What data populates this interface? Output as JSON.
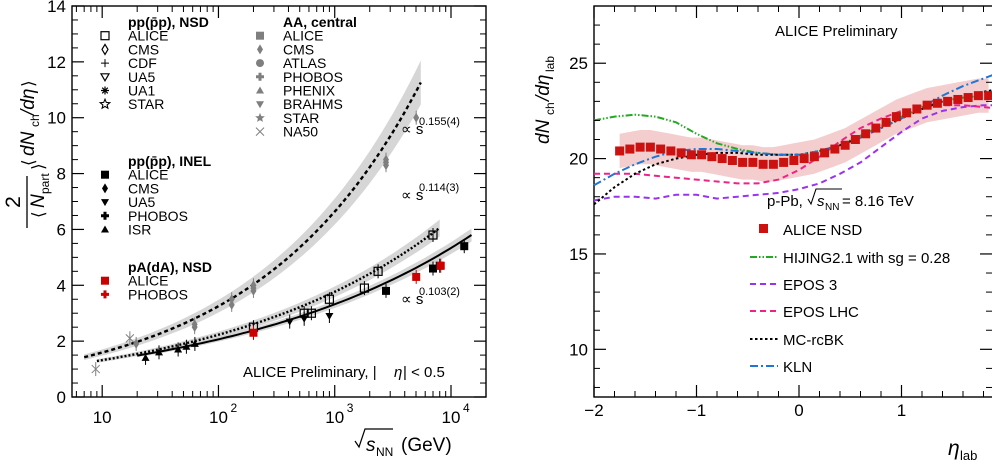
{
  "chart_data": [
    {
      "type": "scatter",
      "x_scale": "log",
      "xlim": [
        5.5,
        20000
      ],
      "ylim": [
        0,
        14
      ],
      "x_tick_labels": [
        "10",
        "10",
        "10",
        "10"
      ],
      "x_tick_exps": [
        "2",
        "3",
        "4"
      ],
      "y_tick_labels": [
        "0",
        "2",
        "4",
        "6",
        "8",
        "10",
        "12",
        "14"
      ],
      "ylabel_frac_num": "2",
      "ylabel_frac_den": "N",
      "ylabel_frac_den_sub": "part",
      "ylabel_rest": "dN",
      "ylabel_rest_sub": "ch",
      "ylabel_rest_tail": "/dη",
      "xlabel_sub": "NN",
      "xlabel_tail": "(GeV)",
      "xlabel_s": "s",
      "legend_groups": [
        {
          "title": "pp(p̄p), NSD",
          "entries": [
            {
              "name": "ALICE",
              "marker": "open-square"
            },
            {
              "name": "CMS",
              "marker": "open-diamond"
            },
            {
              "name": "CDF",
              "marker": "plus"
            },
            {
              "name": "UA5",
              "marker": "open-triangle-down"
            },
            {
              "name": "UA1",
              "marker": "asterisk"
            },
            {
              "name": "STAR",
              "marker": "open-star"
            }
          ]
        },
        {
          "title": "pp(p̄p), INEL",
          "entries": [
            {
              "name": "ALICE",
              "marker": "square"
            },
            {
              "name": "CMS",
              "marker": "diamond"
            },
            {
              "name": "UA5",
              "marker": "triangle-down"
            },
            {
              "name": "PHOBOS",
              "marker": "cross"
            },
            {
              "name": "ISR",
              "marker": "triangle-up"
            }
          ]
        },
        {
          "title": "pA(dA), NSD",
          "entries": [
            {
              "name": "ALICE",
              "marker": "square",
              "color": "#cc0000"
            },
            {
              "name": "PHOBOS",
              "marker": "cross",
              "color": "#cc0000"
            }
          ]
        },
        {
          "title": "AA, central",
          "entries": [
            {
              "name": "ALICE",
              "marker": "square",
              "color": "#7f7f7f"
            },
            {
              "name": "CMS",
              "marker": "diamond",
              "color": "#7f7f7f"
            },
            {
              "name": "ATLAS",
              "marker": "circle",
              "color": "#7f7f7f"
            },
            {
              "name": "PHOBOS",
              "marker": "cross",
              "color": "#7f7f7f"
            },
            {
              "name": "PHENIX",
              "marker": "triangle-up",
              "color": "#7f7f7f"
            },
            {
              "name": "BRAHMS",
              "marker": "triangle-down",
              "color": "#7f7f7f"
            },
            {
              "name": "STAR",
              "marker": "star",
              "color": "#7f7f7f"
            },
            {
              "name": "NA50",
              "marker": "x",
              "color": "#7f7f7f"
            }
          ]
        }
      ],
      "fit_labels": [
        {
          "prefix": "∝ s",
          "exp": "0.155(4)"
        },
        {
          "prefix": "∝ s",
          "exp": "0.114(3)"
        },
        {
          "prefix": "∝ s",
          "exp": "0.103(2)"
        }
      ],
      "fits": [
        {
          "style": "dashed-thick",
          "band": true,
          "coef": 0.78,
          "exp": 0.155
        },
        {
          "style": "dotted",
          "band": true,
          "coef": 0.78,
          "exp": 0.114
        },
        {
          "style": "solid",
          "band": true,
          "coef": 0.8,
          "exp": 0.103
        }
      ],
      "annotation_text": "ALICE Preliminary, |",
      "annotation_eta": "η",
      "annotation_tail": "| < 0.5",
      "series": [
        {
          "name": "AA, central",
          "color": "#7f7f7f",
          "points": [
            [
              8.8,
              1.0
            ],
            [
              17.3,
              2.1
            ],
            [
              19.6,
              1.9
            ],
            [
              62.4,
              2.5
            ],
            [
              62.4,
              2.6
            ],
            [
              130,
              3.3
            ],
            [
              130,
              3.5
            ],
            [
              200,
              3.8
            ],
            [
              200,
              4.0
            ],
            [
              200,
              3.9
            ],
            [
              2760,
              8.4
            ],
            [
              2760,
              8.5
            ],
            [
              2760,
              8.3
            ],
            [
              5020,
              10.0
            ]
          ]
        },
        {
          "name": "pp NSD",
          "color": "#000000",
          "points": [
            [
              200,
              2.5
            ],
            [
              546,
              3.0
            ],
            [
              630,
              3.0
            ],
            [
              900,
              3.5
            ],
            [
              2360,
              4.5
            ],
            [
              7000,
              5.8
            ],
            [
              1800,
              3.9
            ]
          ]
        },
        {
          "name": "pp INEL",
          "color": "#000000",
          "points": [
            [
              23.6,
              1.4
            ],
            [
              30.8,
              1.6
            ],
            [
              45,
              1.7
            ],
            [
              53,
              1.8
            ],
            [
              62.7,
              1.9
            ],
            [
              200,
              2.3
            ],
            [
              410,
              2.7
            ],
            [
              546,
              2.8
            ],
            [
              900,
              2.9
            ],
            [
              2760,
              3.8
            ],
            [
              7000,
              4.6
            ],
            [
              8000,
              4.7
            ],
            [
              13000,
              5.4
            ]
          ]
        },
        {
          "name": "pA",
          "color": "#cc0000",
          "points": [
            [
              200,
              2.3
            ],
            [
              5020,
              4.3
            ],
            [
              8160,
              4.7
            ]
          ]
        }
      ]
    },
    {
      "type": "scatter",
      "title": "ALICE Preliminary",
      "xlim": [
        -2,
        2
      ],
      "ylim": [
        7.5,
        28
      ],
      "x_tick_labels": [
        "−2",
        "−1",
        "0",
        "1",
        "2"
      ],
      "y_tick_labels": [
        "10",
        "15",
        "20",
        "25"
      ],
      "ylabel_main": "dN",
      "ylabel_sub1": "ch",
      "ylabel_mid": "/dη",
      "ylabel_sub2": "lab",
      "xlabel_main": "η",
      "xlabel_sub": "lab",
      "system_label_prefix": "p-Pb, ",
      "system_label_s": "s",
      "system_label_sub": "NN",
      "system_label_tail": " = 8.16 TeV",
      "band_color": "#f2c6c6",
      "series": [
        {
          "name": "ALICE NSD",
          "color": "#cc1111",
          "marker": "square",
          "x": [
            -1.75,
            -1.65,
            -1.55,
            -1.45,
            -1.35,
            -1.25,
            -1.15,
            -1.05,
            -0.95,
            -0.85,
            -0.75,
            -0.65,
            -0.55,
            -0.45,
            -0.35,
            -0.25,
            -0.15,
            -0.05,
            0.05,
            0.15,
            0.25,
            0.35,
            0.45,
            0.55,
            0.65,
            0.75,
            0.85,
            0.95,
            1.05,
            1.15,
            1.25,
            1.35,
            1.45,
            1.55,
            1.65,
            1.75,
            1.85
          ],
          "y": [
            20.4,
            20.5,
            20.6,
            20.6,
            20.5,
            20.4,
            20.3,
            20.2,
            20.2,
            20.1,
            20.0,
            19.9,
            19.8,
            19.8,
            19.7,
            19.7,
            19.8,
            19.9,
            20.0,
            20.1,
            20.3,
            20.5,
            20.7,
            21.0,
            21.3,
            21.6,
            21.9,
            22.2,
            22.4,
            22.6,
            22.8,
            22.9,
            23.0,
            23.1,
            23.2,
            23.3,
            23.3
          ]
        },
        {
          "name": "HIJING2.1 with sg = 0.28",
          "color": "#22aa22",
          "style": "dashdotdot",
          "x": [
            -2,
            -1.8,
            -1.6,
            -1.4,
            -1.2,
            -1.0,
            -0.8,
            -0.6,
            -0.4,
            -0.2,
            0,
            0.2,
            0.4,
            0.6,
            0.8,
            1.0,
            1.2,
            1.4,
            1.6,
            1.8,
            2.0
          ],
          "y": [
            22.0,
            22.2,
            22.3,
            22.2,
            21.9,
            21.3,
            20.8,
            20.5,
            20.3,
            20.2,
            20.2,
            20.4,
            20.7,
            21.2,
            21.7,
            22.2,
            22.7,
            23.0,
            23.2,
            23.3,
            23.3
          ]
        },
        {
          "name": "EPOS 3",
          "color": "#9933ee",
          "style": "dashed",
          "x": [
            -2,
            -1.8,
            -1.6,
            -1.4,
            -1.2,
            -1.0,
            -0.8,
            -0.6,
            -0.4,
            -0.2,
            0,
            0.2,
            0.4,
            0.6,
            0.8,
            1.0,
            1.2,
            1.4,
            1.6,
            1.8,
            2.0
          ],
          "y": [
            17.8,
            18.0,
            18.0,
            17.9,
            18.1,
            18.1,
            17.9,
            18.0,
            18.1,
            18.2,
            18.4,
            18.7,
            19.2,
            19.8,
            20.6,
            21.4,
            22.1,
            22.5,
            22.7,
            22.8,
            22.8
          ]
        },
        {
          "name": "EPOS LHC",
          "color": "#ee2288",
          "style": "dashed",
          "x": [
            -2,
            -1.8,
            -1.6,
            -1.4,
            -1.2,
            -1.0,
            -0.8,
            -0.6,
            -0.4,
            -0.2,
            0,
            0.2,
            0.4,
            0.6,
            0.8,
            1.0,
            1.2,
            1.4,
            1.6,
            1.8,
            2.0
          ],
          "y": [
            19.2,
            19.2,
            19.2,
            19.1,
            19.0,
            18.9,
            18.8,
            18.7,
            18.7,
            18.9,
            19.4,
            20.1,
            20.9,
            21.6,
            22.1,
            22.5,
            22.7,
            22.8,
            22.8,
            22.7,
            22.6
          ]
        },
        {
          "name": "MC-rcBK",
          "color": "#000000",
          "style": "dotted",
          "x": [
            -2,
            -1.8,
            -1.6,
            -1.4,
            -1.2,
            -1.0,
            -0.8,
            -0.6,
            -0.4,
            -0.2,
            0,
            0.2,
            0.4,
            0.6,
            0.8,
            1.0,
            1.2,
            1.4,
            1.6,
            1.8,
            2.0
          ],
          "y": [
            17.6,
            18.5,
            19.2,
            19.7,
            20.0,
            20.2,
            20.3,
            20.3,
            20.2,
            20.2,
            20.2,
            20.4,
            20.7,
            21.1,
            21.6,
            22.1,
            22.6,
            23.0,
            23.3,
            23.5,
            23.7
          ]
        },
        {
          "name": "KLN",
          "color": "#1f77d4",
          "style": "dashdot",
          "x": [
            -2,
            -1.8,
            -1.6,
            -1.4,
            -1.2,
            -1.0,
            -0.8,
            -0.6,
            -0.4,
            -0.2,
            0,
            0.2,
            0.4,
            0.6,
            0.8,
            1.0,
            1.2,
            1.4,
            1.6,
            1.8,
            2.0
          ],
          "y": [
            18.6,
            19.2,
            19.7,
            20.1,
            20.4,
            20.5,
            20.5,
            20.4,
            20.3,
            20.2,
            20.2,
            20.4,
            20.7,
            21.1,
            21.6,
            22.1,
            22.7,
            23.3,
            23.8,
            24.2,
            24.6
          ]
        }
      ]
    }
  ]
}
